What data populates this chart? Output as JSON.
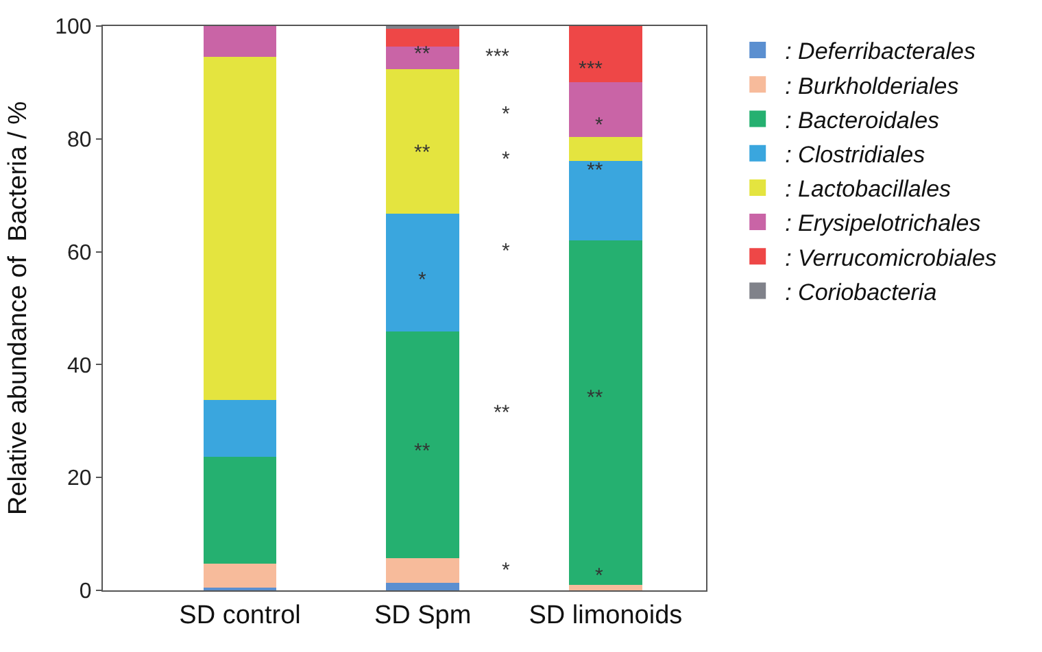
{
  "chart_data": {
    "type": "bar",
    "stacked": true,
    "ylabel": "Relative abundance of  Bacteria / %",
    "categories": [
      "SD control",
      "SD Spm",
      "SD limonoids"
    ],
    "series": [
      {
        "name": ": Deferribacterales",
        "color": "#5b8fd0",
        "values": [
          0.5,
          1.3,
          0
        ]
      },
      {
        "name": ": Burkholderiales",
        "color": "#f7bb9b",
        "values": [
          4.2,
          4.4,
          1.0
        ]
      },
      {
        "name": ": Bacteroidales",
        "color": "#25b070",
        "values": [
          19,
          40.2,
          61.0
        ]
      },
      {
        "name": ": Clostridiales",
        "color": "#3aa6de",
        "values": [
          10,
          20.8,
          14.1
        ]
      },
      {
        "name": ": Lactobacillales",
        "color": "#e4e43f",
        "values": [
          60.9,
          25.6,
          4.3
        ]
      },
      {
        "name": ": Erysipelotrichales",
        "color": "#c964a6",
        "values": [
          5.4,
          4.1,
          9.7
        ]
      },
      {
        "name": ": Verrucomicrobiales",
        "color": "#ee4747",
        "values": [
          0,
          3.1,
          9.9
        ]
      },
      {
        "name": ": Coriobacteria",
        "color": "#80828a",
        "values": [
          0,
          0.5,
          0
        ]
      }
    ],
    "ylim": [
      0,
      100
    ],
    "yticks": [
      0,
      20,
      40,
      60,
      80,
      100
    ],
    "legend": "right",
    "annotations": [
      "**",
      "**",
      "*",
      "**",
      "***",
      "*",
      "*",
      "*",
      "**",
      "*",
      "***",
      "*",
      "**",
      "**",
      "*"
    ]
  }
}
